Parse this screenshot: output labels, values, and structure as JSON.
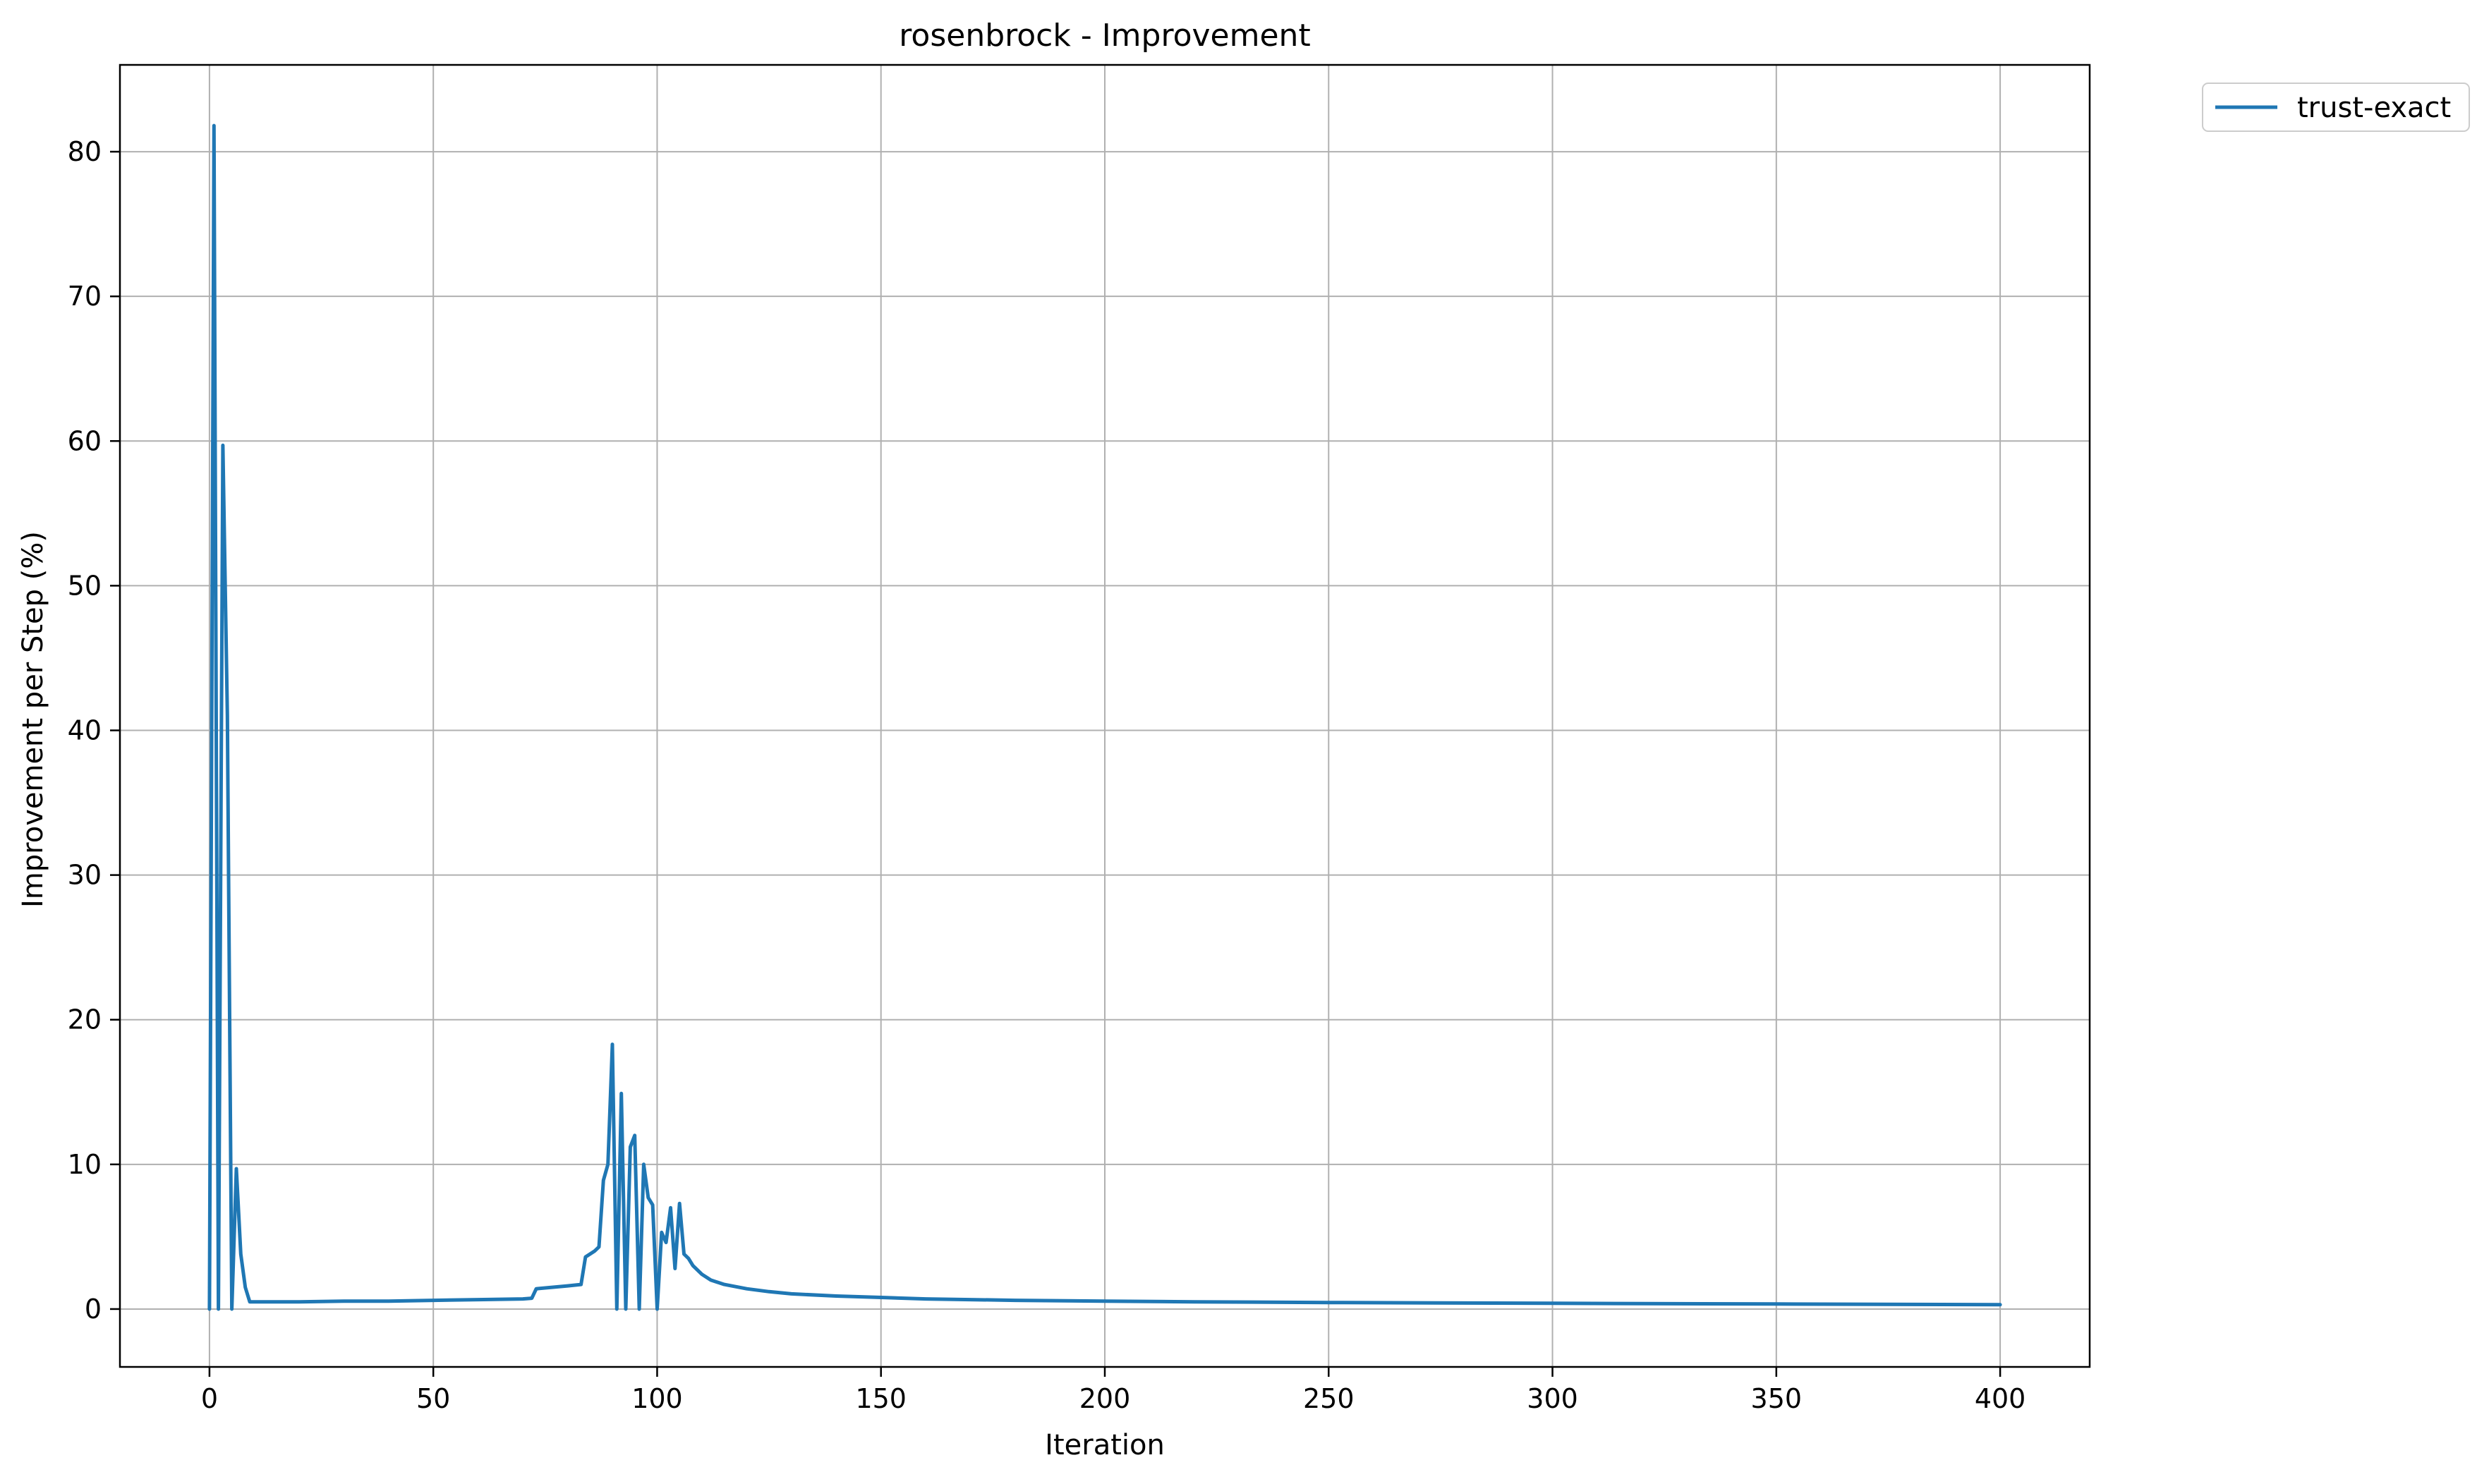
{
  "chart_data": {
    "type": "line",
    "title": "rosenbrock - Improvement",
    "xlabel": "Iteration",
    "ylabel": "Improvement per Step (%)",
    "xlim": [
      -20,
      420
    ],
    "ylim": [
      -4,
      86
    ],
    "xticks": [
      0,
      50,
      100,
      150,
      200,
      250,
      300,
      350,
      400
    ],
    "yticks": [
      0,
      10,
      20,
      30,
      40,
      50,
      60,
      70,
      80
    ],
    "grid": true,
    "legend": "outside-top-right",
    "colors": {
      "series": "#1f77b4",
      "grid": "#b0b0b0",
      "axes": "#000000"
    },
    "series": [
      {
        "name": "trust-exact",
        "x": [
          0,
          1,
          2,
          3,
          4,
          5,
          6,
          7,
          8,
          9,
          10,
          20,
          30,
          40,
          50,
          60,
          70,
          72,
          73,
          80,
          83,
          84,
          86,
          87,
          88,
          89,
          90,
          91,
          92,
          93,
          94,
          95,
          96,
          97,
          98,
          99,
          100,
          101,
          102,
          103,
          104,
          105,
          106,
          107,
          108,
          110,
          112,
          115,
          120,
          125,
          130,
          140,
          150,
          160,
          170,
          180,
          200,
          220,
          250,
          300,
          350,
          400
        ],
        "y": [
          0,
          81.8,
          0,
          59.7,
          41,
          0,
          9.7,
          3.8,
          1.5,
          0.5,
          0.5,
          0.5,
          0.55,
          0.55,
          0.6,
          0.65,
          0.7,
          0.75,
          1.4,
          1.6,
          1.7,
          3.6,
          4.0,
          4.3,
          8.9,
          10.0,
          18.3,
          0,
          14.9,
          0,
          11.2,
          12.0,
          0,
          10.0,
          7.7,
          7.2,
          0,
          5.3,
          4.6,
          7.0,
          2.8,
          7.3,
          3.8,
          3.5,
          3.0,
          2.4,
          2.0,
          1.7,
          1.4,
          1.2,
          1.05,
          0.9,
          0.8,
          0.7,
          0.65,
          0.6,
          0.55,
          0.5,
          0.45,
          0.4,
          0.35,
          0.3
        ]
      }
    ]
  }
}
